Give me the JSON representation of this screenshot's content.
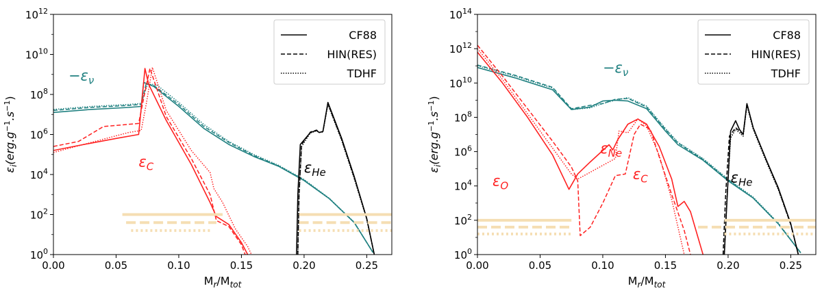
{
  "chart_data": [
    {
      "type": "line",
      "yscale": "log",
      "xlim": [
        0.0,
        0.27
      ],
      "ylim_exponents": [
        0,
        12
      ],
      "xticks": [
        0.0,
        0.05,
        0.1,
        0.15,
        0.2,
        0.25
      ],
      "xtick_labels": [
        "0.00",
        "0.05",
        "0.10",
        "0.15",
        "0.20",
        "0.25"
      ],
      "ytick_exponents": [
        0,
        2,
        4,
        6,
        8,
        10,
        12
      ],
      "ytick_base": "10",
      "xlabel": {
        "main": "M",
        "sub1": "r",
        "mid": "/M",
        "sub2": "tot"
      },
      "ylabel": {
        "main": "ε",
        "sub": "i",
        "units": "(erg.g",
        "e1": "−1",
        "mid": ".s",
        "e2": "−1",
        "close": ")"
      },
      "legend": {
        "position": "top-right",
        "entries": [
          "CF88",
          "HIN(RES)",
          "TDHF"
        ]
      },
      "colors": {
        "neutrino": "#1f8080",
        "carbon": "#ff2020",
        "helium": "#000000",
        "limit": "#f5deb3"
      },
      "labels": [
        {
          "text": "−ε",
          "sub": "ν",
          "color": "#1f8080",
          "x": 0.012,
          "logy": 8.7
        },
        {
          "text": "ε",
          "sub": "C",
          "color": "#ff2020",
          "x": 0.068,
          "logy": 4.4
        },
        {
          "text": "ε",
          "sub": "He",
          "color": "#000000",
          "x": 0.2,
          "logy": 4.1
        }
      ],
      "series": [
        {
          "name": "-eps_nu CF88",
          "color": "#1f8080",
          "style": "solid",
          "x": [
            0,
            0.03,
            0.06,
            0.07,
            0.072,
            0.08,
            0.1,
            0.12,
            0.14,
            0.16,
            0.18,
            0.2,
            0.22,
            0.24,
            0.255
          ],
          "logy": [
            7.1,
            7.25,
            7.35,
            7.4,
            8.6,
            8.4,
            7.4,
            6.3,
            5.5,
            4.9,
            4.4,
            3.7,
            2.8,
            1.6,
            0.1
          ]
        },
        {
          "name": "-eps_nu HIN(RES)",
          "color": "#1f8080",
          "style": "dashed",
          "x": [
            0,
            0.03,
            0.06,
            0.07,
            0.074,
            0.08,
            0.1,
            0.12,
            0.14,
            0.16,
            0.18,
            0.2,
            0.22,
            0.24,
            0.255
          ],
          "logy": [
            7.2,
            7.35,
            7.45,
            7.5,
            8.55,
            8.45,
            7.5,
            6.4,
            5.6,
            4.95,
            4.42,
            3.72,
            2.8,
            1.6,
            0.1
          ]
        },
        {
          "name": "-eps_nu TDHF",
          "color": "#1f8080",
          "style": "dotted",
          "x": [
            0,
            0.03,
            0.06,
            0.07,
            0.075,
            0.082,
            0.1,
            0.12,
            0.14,
            0.16,
            0.18,
            0.2,
            0.22,
            0.24,
            0.255
          ],
          "logy": [
            7.25,
            7.4,
            7.5,
            7.55,
            8.5,
            8.5,
            7.6,
            6.5,
            5.65,
            5.0,
            4.45,
            3.75,
            2.82,
            1.62,
            0.1
          ]
        },
        {
          "name": "eps_C CF88",
          "color": "#ff2020",
          "style": "solid",
          "x": [
            0,
            0.02,
            0.05,
            0.068,
            0.07,
            0.073,
            0.076,
            0.09,
            0.11,
            0.125,
            0.13,
            0.14,
            0.15,
            0.155
          ],
          "logy": [
            5.2,
            5.45,
            5.8,
            6.0,
            7.3,
            9.3,
            8.5,
            6.7,
            4.5,
            2.6,
            1.9,
            1.5,
            0.6,
            0
          ]
        },
        {
          "name": "eps_C HIN(RES)",
          "color": "#ff2020",
          "style": "dashed",
          "x": [
            0,
            0.02,
            0.04,
            0.05,
            0.068,
            0.072,
            0.077,
            0.09,
            0.11,
            0.125,
            0.13,
            0.14,
            0.15,
            0.153
          ],
          "logy": [
            5.4,
            5.65,
            6.4,
            6.45,
            6.55,
            7.8,
            9.3,
            6.9,
            4.8,
            3.0,
            1.7,
            1.4,
            0.5,
            0
          ]
        },
        {
          "name": "eps_C TDHF",
          "color": "#ff2020",
          "style": "dotted",
          "x": [
            0,
            0.03,
            0.06,
            0.07,
            0.074,
            0.079,
            0.09,
            0.11,
            0.125,
            0.128,
            0.135,
            0.145,
            0.155,
            0.158
          ],
          "logy": [
            5.1,
            5.6,
            6.1,
            6.2,
            7.5,
            9.35,
            7.2,
            5.2,
            4.1,
            3.3,
            2.6,
            1.3,
            0.4,
            0
          ]
        },
        {
          "name": "eps_He CF88",
          "color": "#000000",
          "style": "solid",
          "x": [
            0.194,
            0.195,
            0.197,
            0.205,
            0.21,
            0.212,
            0.215,
            0.219,
            0.23,
            0.24,
            0.25,
            0.256
          ],
          "logy": [
            0,
            3.0,
            5.5,
            6.1,
            6.2,
            6.1,
            6.15,
            7.6,
            5.8,
            3.9,
            1.8,
            0
          ]
        },
        {
          "name": "eps_He HIN(RES)",
          "color": "#000000",
          "style": "dashed",
          "x": [
            0.195,
            0.196,
            0.198,
            0.205,
            0.21,
            0.212,
            0.215,
            0.219,
            0.23,
            0.24,
            0.25,
            0.256
          ],
          "logy": [
            0,
            3.0,
            5.5,
            6.12,
            6.22,
            6.1,
            6.15,
            7.55,
            5.75,
            3.85,
            1.8,
            0
          ]
        },
        {
          "name": "eps_He TDHF",
          "color": "#000000",
          "style": "dotted",
          "x": [
            0.195,
            0.196,
            0.198,
            0.205,
            0.21,
            0.212,
            0.215,
            0.219,
            0.23,
            0.24,
            0.25,
            0.256
          ],
          "logy": [
            0,
            3.0,
            5.4,
            6.08,
            6.18,
            6.1,
            6.12,
            7.5,
            5.7,
            3.8,
            1.75,
            0
          ]
        },
        {
          "name": "limit solid left",
          "color": "#f5deb3",
          "style": "limit-solid",
          "x": [
            0.055,
            0.135
          ],
          "logy": [
            2.0,
            2.0
          ]
        },
        {
          "name": "limit dashed left",
          "color": "#f5deb3",
          "style": "limit-dashed",
          "x": [
            0.058,
            0.13
          ],
          "logy": [
            1.6,
            1.6
          ]
        },
        {
          "name": "limit dotted left",
          "color": "#f5deb3",
          "style": "limit-dotted",
          "x": [
            0.062,
            0.125
          ],
          "logy": [
            1.2,
            1.2
          ]
        },
        {
          "name": "limit solid right",
          "color": "#f5deb3",
          "style": "limit-solid",
          "x": [
            0.196,
            0.27
          ],
          "logy": [
            2.0,
            2.0
          ]
        },
        {
          "name": "limit dashed right",
          "color": "#f5deb3",
          "style": "limit-dashed",
          "x": [
            0.196,
            0.27
          ],
          "logy": [
            1.6,
            1.6
          ]
        },
        {
          "name": "limit dotted right",
          "color": "#f5deb3",
          "style": "limit-dotted",
          "x": [
            0.196,
            0.27
          ],
          "logy": [
            1.2,
            1.2
          ]
        }
      ]
    },
    {
      "type": "line",
      "yscale": "log",
      "xlim": [
        0.0,
        0.27
      ],
      "ylim_exponents": [
        0,
        14
      ],
      "xticks": [
        0.0,
        0.05,
        0.1,
        0.15,
        0.2,
        0.25
      ],
      "xtick_labels": [
        "0.00",
        "0.05",
        "0.10",
        "0.15",
        "0.20",
        "0.25"
      ],
      "ytick_exponents": [
        0,
        2,
        4,
        6,
        8,
        10,
        12,
        14
      ],
      "ytick_base": "10",
      "xlabel": {
        "main": "M",
        "sub1": "r",
        "mid": "/M",
        "sub2": "tot"
      },
      "ylabel": {
        "main": "ε",
        "sub": "i",
        "units": "(erg.g",
        "e1": "−1",
        "mid": ".s",
        "e2": "−1",
        "close": ")"
      },
      "legend": {
        "position": "top-right",
        "entries": [
          "CF88",
          "HIN(RES)",
          "TDHF"
        ]
      },
      "colors": {
        "neutrino": "#1f8080",
        "carbon": "#ff2020",
        "helium": "#000000",
        "limit": "#f5deb3"
      },
      "labels": [
        {
          "text": "−ε",
          "sub": "ν",
          "color": "#1f8080",
          "x": 0.1,
          "logy": 10.6
        },
        {
          "text": "ε",
          "sub": "Ne",
          "color": "#ff2020",
          "x": 0.098,
          "logy": 5.9
        },
        {
          "text": "ε",
          "sub": "C",
          "color": "#ff2020",
          "x": 0.124,
          "logy": 4.4
        },
        {
          "text": "ε",
          "sub": "O",
          "color": "#ff2020",
          "x": 0.012,
          "logy": 4.0
        },
        {
          "text": "ε",
          "sub": "He",
          "color": "#000000",
          "x": 0.202,
          "logy": 4.2
        }
      ],
      "series": [
        {
          "name": "-eps_nu CF88",
          "color": "#1f8080",
          "style": "solid",
          "x": [
            0,
            0.03,
            0.06,
            0.075,
            0.09,
            0.1,
            0.11,
            0.12,
            0.135,
            0.15,
            0.16,
            0.18,
            0.2,
            0.22,
            0.24,
            0.258
          ],
          "logy": [
            10.9,
            10.3,
            9.6,
            8.45,
            8.6,
            8.95,
            9.0,
            8.95,
            8.5,
            7.2,
            6.4,
            5.5,
            4.3,
            3.3,
            1.8,
            0.1
          ]
        },
        {
          "name": "-eps_nu HIN(RES)",
          "color": "#1f8080",
          "style": "dashed",
          "x": [
            0,
            0.03,
            0.06,
            0.075,
            0.09,
            0.1,
            0.11,
            0.12,
            0.135,
            0.15,
            0.16,
            0.18,
            0.2,
            0.22,
            0.24,
            0.258
          ],
          "logy": [
            11.05,
            10.45,
            9.75,
            8.5,
            8.7,
            8.8,
            9.05,
            9.1,
            8.6,
            7.3,
            6.5,
            5.55,
            4.35,
            3.3,
            1.8,
            0.1
          ]
        },
        {
          "name": "-eps_nu TDHF",
          "color": "#1f8080",
          "style": "dotted",
          "x": [
            0,
            0.03,
            0.06,
            0.075,
            0.09,
            0.1,
            0.11,
            0.12,
            0.135,
            0.15,
            0.16,
            0.18,
            0.2,
            0.22,
            0.24,
            0.258
          ],
          "logy": [
            11.0,
            10.4,
            9.7,
            8.45,
            8.55,
            8.8,
            9.0,
            9.15,
            8.65,
            7.35,
            6.55,
            5.6,
            4.4,
            3.35,
            1.85,
            0.1
          ]
        },
        {
          "name": "eps_O/Ne/C CF88",
          "color": "#ff2020",
          "style": "solid",
          "x": [
            0,
            0.02,
            0.04,
            0.06,
            0.073,
            0.08,
            0.09,
            0.105,
            0.108,
            0.112,
            0.12,
            0.128,
            0.135,
            0.145,
            0.155,
            0.16,
            0.165,
            0.17,
            0.18
          ],
          "logy": [
            11.8,
            10.0,
            8.0,
            5.8,
            3.8,
            4.7,
            5.4,
            6.4,
            6.1,
            6.7,
            7.6,
            7.9,
            7.6,
            6.3,
            4.4,
            2.8,
            3.1,
            2.5,
            0
          ]
        },
        {
          "name": "eps_O/Ne/C HIN(RES)",
          "color": "#ff2020",
          "style": "dashed",
          "x": [
            0,
            0.02,
            0.04,
            0.06,
            0.075,
            0.08,
            0.082,
            0.09,
            0.1,
            0.11,
            0.118,
            0.125,
            0.13,
            0.138,
            0.145,
            0.155,
            0.165,
            0.17
          ],
          "logy": [
            12.2,
            10.4,
            8.5,
            6.6,
            5.1,
            4.3,
            1.1,
            1.6,
            3.0,
            4.6,
            4.7,
            7.0,
            7.6,
            7.3,
            5.7,
            3.5,
            1.4,
            0
          ]
        },
        {
          "name": "eps_O/Ne/C TDHF",
          "color": "#ff2020",
          "style": "dotted",
          "x": [
            0,
            0.02,
            0.04,
            0.06,
            0.075,
            0.08,
            0.09,
            0.1,
            0.11,
            0.113,
            0.12,
            0.128,
            0.135,
            0.145,
            0.155,
            0.165
          ],
          "logy": [
            12.0,
            10.2,
            8.2,
            6.2,
            4.7,
            4.4,
            4.8,
            5.2,
            5.6,
            7.2,
            7.1,
            7.9,
            7.5,
            5.8,
            3.2,
            0
          ]
        },
        {
          "name": "eps_He CF88",
          "color": "#000000",
          "style": "solid",
          "x": [
            0.197,
            0.199,
            0.202,
            0.206,
            0.209,
            0.212,
            0.215,
            0.22,
            0.23,
            0.24,
            0.25,
            0.256
          ],
          "logy": [
            0,
            3.0,
            7.2,
            7.8,
            7.3,
            7.0,
            8.8,
            7.4,
            5.6,
            3.9,
            1.8,
            0
          ]
        },
        {
          "name": "eps_He HIN(RES)",
          "color": "#000000",
          "style": "dashed",
          "x": [
            0.196,
            0.198,
            0.201,
            0.206,
            0.209,
            0.212,
            0.215,
            0.22,
            0.23,
            0.24,
            0.25,
            0.256
          ],
          "logy": [
            0,
            3.5,
            6.9,
            7.4,
            7.2,
            7.0,
            8.8,
            7.4,
            5.6,
            3.85,
            1.75,
            0
          ]
        },
        {
          "name": "eps_He TDHF",
          "color": "#000000",
          "style": "dotted",
          "x": [
            0.197,
            0.199,
            0.202,
            0.206,
            0.209,
            0.212,
            0.215,
            0.22,
            0.23,
            0.24,
            0.25,
            0.256
          ],
          "logy": [
            0,
            3.2,
            6.8,
            7.3,
            7.1,
            6.9,
            8.7,
            7.3,
            5.5,
            3.8,
            1.75,
            0
          ]
        },
        {
          "name": "limit solid left",
          "color": "#f5deb3",
          "style": "limit-solid",
          "x": [
            0.0,
            0.075
          ],
          "logy": [
            2.0,
            2.0
          ]
        },
        {
          "name": "limit dashed left",
          "color": "#f5deb3",
          "style": "limit-dashed",
          "x": [
            0.0,
            0.075
          ],
          "logy": [
            1.6,
            1.6
          ]
        },
        {
          "name": "limit dotted left",
          "color": "#f5deb3",
          "style": "limit-dotted",
          "x": [
            0.0,
            0.075
          ],
          "logy": [
            1.2,
            1.2
          ]
        },
        {
          "name": "limit solid right",
          "color": "#f5deb3",
          "style": "limit-solid",
          "x": [
            0.197,
            0.27
          ],
          "logy": [
            2.0,
            2.0
          ]
        },
        {
          "name": "limit dashed right",
          "color": "#f5deb3",
          "style": "limit-dashed",
          "x": [
            0.176,
            0.27
          ],
          "logy": [
            1.6,
            1.6
          ]
        },
        {
          "name": "limit dotted right",
          "color": "#f5deb3",
          "style": "limit-dotted",
          "x": [
            0.197,
            0.27
          ],
          "logy": [
            1.2,
            1.2
          ]
        }
      ]
    }
  ]
}
